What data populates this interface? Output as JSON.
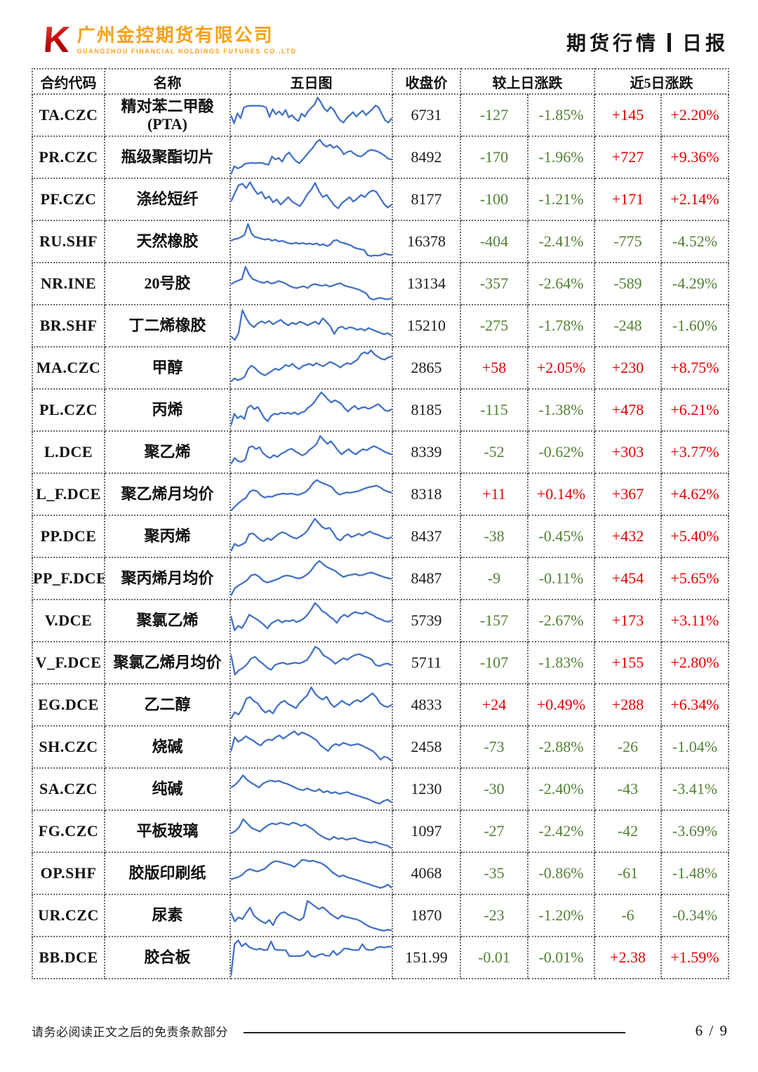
{
  "header": {
    "logo_letter": "K",
    "company_name_cn": "广州金控期货有限公司",
    "company_name_en": "GUANGZHOU FINANCIAL HOLDINGS FUTURES CO.,LTD",
    "report_title": "期货行情",
    "report_type": "日报"
  },
  "colors": {
    "up": "#e60000",
    "down": "#538135",
    "spark": "#4472C4"
  },
  "table": {
    "headers": {
      "code": "合约代码",
      "name": "名称",
      "chart": "五日图",
      "close": "收盘价",
      "day_change": "较上日涨跌",
      "five_day_change": "近5日涨跌"
    },
    "rows": [
      {
        "code": "TA.CZC",
        "name": "精对苯二甲酸\n(PTA)",
        "close": "6731",
        "chg": "-127",
        "chg_pct": "-1.85%",
        "chg5": "+145",
        "chg5_pct": "+2.20%",
        "spark": [
          50,
          28,
          55,
          42,
          70,
          74,
          75,
          75,
          75,
          75,
          74,
          70,
          45,
          66,
          52,
          60,
          50,
          64,
          44,
          50,
          40,
          34,
          54,
          46,
          60,
          70,
          78,
          97,
          84,
          68,
          60,
          72,
          64,
          48,
          36,
          30,
          42,
          50,
          58,
          46,
          55,
          62,
          50,
          58,
          66,
          76,
          70,
          52,
          36,
          30,
          42
        ]
      },
      {
        "code": "PR.CZC",
        "name": "瓶级聚酯切片",
        "close": "8492",
        "chg": "-170",
        "chg_pct": "-1.96%",
        "chg5": "+727",
        "chg5_pct": "+9.36%",
        "spark": [
          4,
          26,
          20,
          24,
          32,
          34,
          35,
          34,
          35,
          35,
          32,
          30,
          52,
          44,
          48,
          38,
          55,
          63,
          50,
          40,
          34,
          44,
          55,
          66,
          76,
          90,
          97,
          84,
          78,
          84,
          75,
          80,
          72,
          58,
          64,
          67,
          60,
          54,
          52,
          58,
          66,
          70,
          68,
          65,
          60,
          54,
          46,
          44
        ]
      },
      {
        "code": "PF.CZC",
        "name": "涤纶短纤",
        "close": "8177",
        "chg": "-100",
        "chg_pct": "-1.21%",
        "chg5": "+171",
        "chg5_pct": "+2.14%",
        "spark": [
          44,
          66,
          88,
          92,
          80,
          96,
          78,
          64,
          70,
          52,
          58,
          42,
          50,
          36,
          46,
          56,
          44,
          38,
          32,
          46,
          64,
          76,
          94,
          72,
          56,
          62,
          48,
          34,
          26,
          40,
          48,
          56,
          44,
          52,
          62,
          56,
          68,
          74,
          70,
          54,
          38,
          28,
          36
        ]
      },
      {
        "code": "RU.SHF",
        "name": "天然橡胶",
        "close": "16378",
        "chg": "-404",
        "chg_pct": "-2.41%",
        "chg5": "-775",
        "chg5_pct": "-4.52%",
        "spark": [
          52,
          56,
          58,
          62,
          68,
          97,
          72,
          62,
          60,
          57,
          55,
          57,
          52,
          55,
          50,
          52,
          48,
          45,
          44,
          47,
          44,
          46,
          43,
          45,
          42,
          45,
          40,
          43,
          38,
          41,
          52,
          54,
          48,
          46,
          43,
          40,
          34,
          31,
          29,
          27,
          13,
          11,
          13,
          12,
          14,
          18,
          15,
          14
        ]
      },
      {
        "code": "NR.INE",
        "name": "20号胶",
        "close": "13134",
        "chg": "-357",
        "chg_pct": "-2.64%",
        "chg5": "-589",
        "chg5_pct": "-4.29%",
        "spark": [
          48,
          54,
          58,
          62,
          95,
          74,
          62,
          58,
          54,
          52,
          56,
          50,
          52,
          57,
          54,
          50,
          44,
          40,
          38,
          41,
          43,
          38,
          46,
          49,
          46,
          44,
          47,
          42,
          45,
          49,
          51,
          45,
          42,
          40,
          37,
          34,
          29,
          24,
          11,
          7,
          10,
          12,
          9,
          8,
          11
        ]
      },
      {
        "code": "BR.SHF",
        "name": "丁二烯橡胶",
        "close": "15210",
        "chg": "-275",
        "chg_pct": "-1.78%",
        "chg5": "-248",
        "chg5_pct": "-1.60%",
        "spark": [
          22,
          12,
          30,
          92,
          70,
          54,
          46,
          56,
          62,
          57,
          63,
          54,
          60,
          66,
          57,
          51,
          58,
          54,
          61,
          57,
          51,
          56,
          61,
          54,
          70,
          60,
          48,
          28,
          44,
          48,
          41,
          46,
          44,
          39,
          42,
          37,
          44,
          39,
          35,
          31,
          27,
          30,
          24
        ]
      },
      {
        "code": "MA.CZC",
        "name": "甲醇",
        "close": "2865",
        "chg": "+58",
        "chg_pct": "+2.05%",
        "chg5": "+230",
        "chg5_pct": "+8.75%",
        "spark": [
          13,
          22,
          17,
          20,
          26,
          46,
          56,
          50,
          40,
          34,
          30,
          36,
          42,
          48,
          44,
          50,
          58,
          54,
          61,
          52,
          47,
          55,
          58,
          61,
          56,
          63,
          58,
          54,
          60,
          66,
          62,
          57,
          51,
          58,
          63,
          60,
          66,
          72,
          86,
          92,
          88,
          97,
          86,
          80,
          74,
          72,
          78,
          81
        ]
      },
      {
        "code": "PL.CZC",
        "name": "丙烯",
        "close": "8185",
        "chg": "-115",
        "chg_pct": "-1.38%",
        "chg5": "+478",
        "chg5_pct": "+6.21%",
        "spark": [
          8,
          40,
          28,
          34,
          26,
          56,
          62,
          52,
          58,
          44,
          28,
          20,
          34,
          40,
          38,
          43,
          40,
          43,
          39,
          44,
          38,
          43,
          46,
          56,
          62,
          72,
          86,
          97,
          88,
          78,
          70,
          76,
          72,
          66,
          54,
          46,
          55,
          61,
          52,
          56,
          58,
          53,
          56,
          61,
          66,
          58,
          49,
          47,
          52
        ]
      },
      {
        "code": "L.DCE",
        "name": "聚乙烯",
        "close": "8339",
        "chg": "-52",
        "chg_pct": "-0.62%",
        "chg5": "+303",
        "chg5_pct": "+3.77%",
        "spark": [
          18,
          34,
          26,
          24,
          30,
          62,
          66,
          58,
          63,
          47,
          39,
          34,
          42,
          37,
          45,
          50,
          56,
          59,
          52,
          47,
          41,
          46,
          56,
          63,
          72,
          93,
          82,
          72,
          79,
          67,
          54,
          44,
          52,
          58,
          49,
          44,
          52,
          58,
          55,
          61,
          66,
          62,
          57,
          51,
          47,
          44
        ]
      },
      {
        "code": "L_F.DCE",
        "name": "聚乙烯月均价",
        "close": "8318",
        "chg": "+11",
        "chg_pct": "+0.14%",
        "chg5": "+367",
        "chg5_pct": "+4.62%",
        "spark": [
          6,
          16,
          26,
          34,
          40,
          56,
          61,
          58,
          47,
          41,
          44,
          43,
          48,
          50,
          52,
          50,
          52,
          50,
          48,
          52,
          56,
          66,
          80,
          88,
          82,
          78,
          74,
          69,
          57,
          49,
          52,
          55,
          54,
          56,
          58,
          62,
          66,
          69,
          71,
          73,
          68,
          61,
          57,
          54
        ]
      },
      {
        "code": "PP.DCE",
        "name": "聚丙烯",
        "close": "8437",
        "chg": "-38",
        "chg_pct": "-0.45%",
        "chg5": "+432",
        "chg5_pct": "+5.40%",
        "spark": [
          10,
          30,
          24,
          28,
          34,
          56,
          58,
          50,
          41,
          37,
          45,
          40,
          48,
          56,
          61,
          58,
          52,
          47,
          44,
          50,
          56,
          66,
          82,
          97,
          86,
          75,
          70,
          73,
          60,
          44,
          39,
          50,
          56,
          48,
          52,
          57,
          52,
          58,
          63,
          58,
          55,
          51,
          47,
          44,
          48
        ]
      },
      {
        "code": "PP_F.DCE",
        "name": "聚丙烯月均价",
        "close": "8487",
        "chg": "-9",
        "chg_pct": "-0.11%",
        "chg5": "+454",
        "chg5_pct": "+5.65%",
        "spark": [
          4,
          24,
          32,
          38,
          45,
          58,
          61,
          55,
          44,
          39,
          42,
          46,
          50,
          56,
          58,
          56,
          52,
          50,
          54,
          61,
          72,
          87,
          97,
          88,
          80,
          75,
          70,
          61,
          54,
          58,
          60,
          62,
          58,
          60,
          64,
          66,
          62,
          58,
          54,
          51,
          49
        ]
      },
      {
        "code": "V.DCE",
        "name": "聚氯乙烯",
        "close": "5739",
        "chg": "-157",
        "chg_pct": "-2.67%",
        "chg5": "+173",
        "chg5_pct": "+3.11%",
        "spark": [
          62,
          24,
          36,
          30,
          46,
          66,
          60,
          54,
          47,
          39,
          29,
          42,
          48,
          52,
          45,
          50,
          48,
          52,
          46,
          50,
          56,
          66,
          80,
          97,
          88,
          75,
          70,
          61,
          54,
          44,
          58,
          66,
          60,
          68,
          73,
          70,
          68,
          73,
          68,
          64,
          57,
          54,
          49,
          47,
          50
        ]
      },
      {
        "code": "V_F.DCE",
        "name": "聚氯乙烯月均价",
        "close": "5711",
        "chg": "-107",
        "chg_pct": "-1.83%",
        "chg5": "+155",
        "chg5_pct": "+2.80%",
        "spark": [
          72,
          18,
          30,
          36,
          46,
          61,
          66,
          55,
          47,
          37,
          31,
          44,
          48,
          50,
          46,
          48,
          50,
          48,
          52,
          58,
          74,
          93,
          86,
          70,
          64,
          57,
          47,
          55,
          62,
          58,
          66,
          71,
          73,
          68,
          64,
          59,
          44,
          41,
          46,
          48,
          43
        ]
      },
      {
        "code": "EG.DCE",
        "name": "乙二醇",
        "close": "4833",
        "chg": "+24",
        "chg_pct": "+0.49%",
        "chg5": "+288",
        "chg5_pct": "+6.34%",
        "spark": [
          13,
          30,
          24,
          40,
          66,
          71,
          60,
          54,
          39,
          29,
          35,
          27,
          45,
          56,
          61,
          52,
          47,
          41,
          56,
          66,
          76,
          97,
          80,
          70,
          64,
          72,
          54,
          44,
          52,
          61,
          54,
          49,
          58,
          63,
          58,
          66,
          73,
          81,
          70,
          54,
          47,
          44,
          50
        ]
      },
      {
        "code": "SH.CZC",
        "name": "烧碱",
        "close": "2458",
        "chg": "-73",
        "chg_pct": "-2.88%",
        "chg5": "-26",
        "chg5_pct": "-1.04%",
        "spark": [
          38,
          76,
          64,
          70,
          79,
          72,
          67,
          59,
          54,
          65,
          70,
          68,
          76,
          81,
          72,
          79,
          86,
          92,
          82,
          89,
          85,
          80,
          74,
          67,
          54,
          47,
          39,
          52,
          58,
          54,
          61,
          58,
          54,
          56,
          58,
          54,
          49,
          44,
          39,
          29,
          16,
          24,
          21,
          13
        ]
      },
      {
        "code": "SA.CZC",
        "name": "纯碱",
        "close": "1230",
        "chg": "-30",
        "chg_pct": "-2.40%",
        "chg5": "-43",
        "chg5_pct": "-3.41%",
        "spark": [
          54,
          61,
          72,
          87,
          75,
          67,
          61,
          54,
          65,
          70,
          73,
          70,
          72,
          67,
          64,
          59,
          54,
          49,
          47,
          52,
          47,
          44,
          50,
          41,
          45,
          39,
          42,
          37,
          40,
          42,
          37,
          34,
          31,
          27,
          24,
          19,
          14,
          11,
          18,
          22,
          14
        ]
      },
      {
        "code": "FG.CZC",
        "name": "平板玻璃",
        "close": "1097",
        "chg": "-27",
        "chg_pct": "-2.42%",
        "chg5": "-42",
        "chg5_pct": "-3.69%",
        "spark": [
          44,
          50,
          61,
          82,
          70,
          59,
          54,
          49,
          58,
          66,
          71,
          68,
          73,
          70,
          67,
          73,
          70,
          64,
          68,
          61,
          54,
          44,
          37,
          31,
          27,
          35,
          29,
          32,
          27,
          30,
          32,
          27,
          24,
          21,
          19,
          22,
          17,
          14,
          11,
          4
        ]
      },
      {
        "code": "OP.SHF",
        "name": "胶版印刷纸",
        "close": "4068",
        "chg": "-35",
        "chg_pct": "-0.86%",
        "chg5": "-61",
        "chg5_pct": "-1.48%",
        "spark": [
          34,
          37,
          40,
          46,
          56,
          61,
          58,
          55,
          58,
          62,
          71,
          79,
          83,
          81,
          78,
          75,
          72,
          67,
          76,
          86,
          85,
          82,
          84,
          80,
          78,
          72,
          64,
          54,
          47,
          41,
          45,
          40,
          37,
          34,
          31,
          27,
          24,
          21,
          17,
          14,
          11,
          14,
          20,
          11
        ]
      },
      {
        "code": "UR.CZC",
        "name": "尿素",
        "close": "1870",
        "chg": "-23",
        "chg_pct": "-1.20%",
        "chg5": "-6",
        "chg5_pct": "-0.34%",
        "spark": [
          58,
          34,
          45,
          40,
          56,
          71,
          50,
          41,
          34,
          29,
          38,
          24,
          45,
          56,
          59,
          52,
          47,
          41,
          37,
          45,
          89,
          82,
          74,
          67,
          72,
          64,
          54,
          47,
          41,
          50,
          46,
          44,
          41,
          39,
          34,
          27,
          21,
          17,
          14,
          11,
          9,
          12,
          10
        ]
      },
      {
        "code": "BB.DCE",
        "name": "胶合板",
        "close": "151.99",
        "chg": "-0.01",
        "chg_pct": "-0.01%",
        "chg5": "+2.38",
        "chg5_pct": "+1.59%",
        "spark": [
          0,
          86,
          96,
          80,
          88,
          78,
          74,
          71,
          74,
          70,
          71,
          93,
          72,
          70,
          70,
          70,
          54,
          54,
          54,
          54,
          57,
          68,
          54,
          52,
          57,
          60,
          55,
          55,
          68,
          57,
          64,
          74,
          74,
          71,
          70,
          70,
          86,
          72,
          70,
          71,
          77,
          79,
          77,
          79,
          79
        ]
      }
    ]
  },
  "footer": {
    "disclaimer": "请务必阅读正文之后的免责条款部分",
    "page": "6 / 9"
  }
}
